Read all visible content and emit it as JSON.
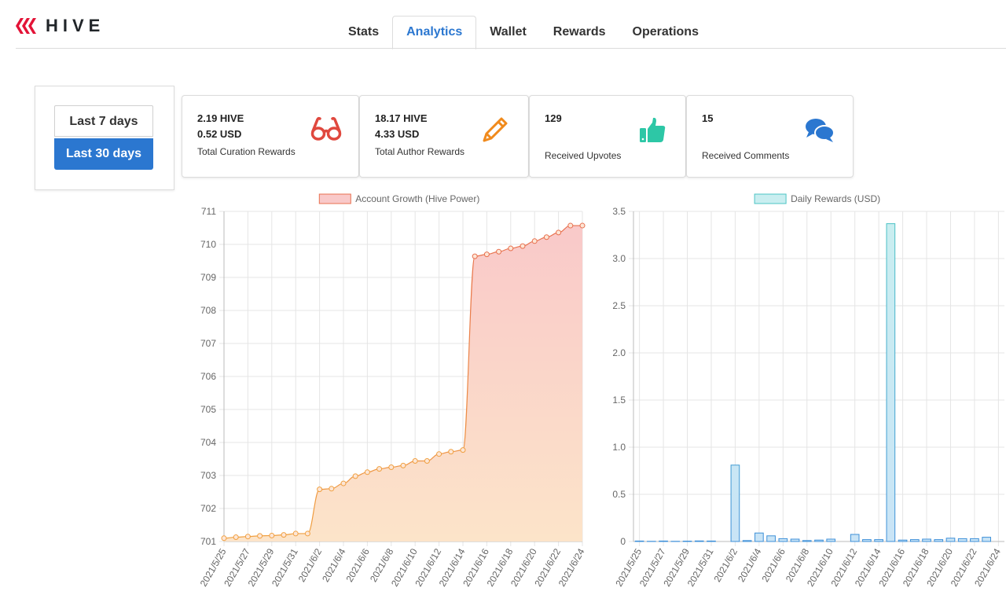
{
  "brand": {
    "logo_text": "HIVE"
  },
  "tabs": [
    "Stats",
    "Analytics",
    "Wallet",
    "Rewards",
    "Operations"
  ],
  "active_tab": "Analytics",
  "period": {
    "last7": "Last 7 days",
    "last30": "Last 30 days",
    "selected": "Last 30 days"
  },
  "cards": {
    "curation": {
      "line1": "2.19 HIVE",
      "line2": "0.52 USD",
      "label": "Total Curation Rewards",
      "icon": "glasses-icon",
      "color": "#e0483e"
    },
    "author": {
      "line1": "18.17 HIVE",
      "line2": "4.33 USD",
      "label": "Total Author Rewards",
      "icon": "pencil-icon",
      "color": "#f08a1c"
    },
    "upvotes": {
      "line1": "129",
      "label": "Received Upvotes",
      "icon": "thumbs-up-icon",
      "color": "#2dc7a6"
    },
    "comments": {
      "line1": "15",
      "label": "Received Comments",
      "icon": "comments-icon",
      "color": "#2b77d0"
    }
  },
  "chart_data": [
    {
      "type": "area",
      "legend": "Account Growth (Hive Power)",
      "legend_position": "top-center",
      "grid": true,
      "ylim": [
        701,
        711
      ],
      "yticks": [
        701,
        702,
        703,
        704,
        705,
        706,
        707,
        708,
        709,
        710,
        711
      ],
      "x": [
        "2021/5/25",
        "2021/5/26",
        "2021/5/27",
        "2021/5/28",
        "2021/5/29",
        "2021/5/30",
        "2021/5/31",
        "2021/6/1",
        "2021/6/2",
        "2021/6/3",
        "2021/6/4",
        "2021/6/5",
        "2021/6/6",
        "2021/6/7",
        "2021/6/8",
        "2021/6/9",
        "2021/6/10",
        "2021/6/11",
        "2021/6/12",
        "2021/6/13",
        "2021/6/14",
        "2021/6/15",
        "2021/6/16",
        "2021/6/17",
        "2021/6/18",
        "2021/6/19",
        "2021/6/20",
        "2021/6/21",
        "2021/6/22",
        "2021/6/23",
        "2021/6/24"
      ],
      "xtick_labels": [
        "2021/5/25",
        "2021/5/27",
        "2021/5/29",
        "2021/5/31",
        "2021/6/2",
        "2021/6/4",
        "2021/6/6",
        "2021/6/8",
        "2021/6/10",
        "2021/6/12",
        "2021/6/14",
        "2021/6/16",
        "2021/6/18",
        "2021/6/20",
        "2021/6/22",
        "2021/6/24"
      ],
      "values": [
        701.1,
        701.13,
        701.15,
        701.17,
        701.18,
        701.2,
        701.24,
        701.24,
        702.58,
        702.6,
        702.76,
        702.98,
        703.1,
        703.2,
        703.25,
        703.3,
        703.44,
        703.44,
        703.65,
        703.72,
        703.77,
        709.64,
        709.7,
        709.78,
        709.88,
        709.95,
        710.1,
        710.22,
        710.36,
        710.57,
        710.57
      ],
      "fill_top_color": "#f9c9c9",
      "fill_bottom_color": "#fce4c9",
      "line_top_color": "#e8704f",
      "line_bottom_color": "#f0a040"
    },
    {
      "type": "bar",
      "legend": "Daily Rewards (USD)",
      "legend_position": "top-center",
      "grid": true,
      "ylim": [
        0,
        3.5
      ],
      "yticks": [
        0,
        0.5,
        1.0,
        1.5,
        2.0,
        2.5,
        3.0,
        3.5
      ],
      "ytick_labels": [
        "0",
        "0.5",
        "1.0",
        "1.5",
        "2.0",
        "2.5",
        "3.0",
        "3.5"
      ],
      "x": [
        "2021/5/25",
        "2021/5/26",
        "2021/5/27",
        "2021/5/28",
        "2021/5/29",
        "2021/5/30",
        "2021/5/31",
        "2021/6/1",
        "2021/6/2",
        "2021/6/3",
        "2021/6/4",
        "2021/6/5",
        "2021/6/6",
        "2021/6/7",
        "2021/6/8",
        "2021/6/9",
        "2021/6/10",
        "2021/6/11",
        "2021/6/12",
        "2021/6/13",
        "2021/6/14",
        "2021/6/15",
        "2021/6/16",
        "2021/6/17",
        "2021/6/18",
        "2021/6/19",
        "2021/6/20",
        "2021/6/21",
        "2021/6/22",
        "2021/6/23",
        "2021/6/24"
      ],
      "xtick_labels": [
        "2021/5/25",
        "2021/5/27",
        "2021/5/29",
        "2021/5/31",
        "2021/6/2",
        "2021/6/4",
        "2021/6/6",
        "2021/6/8",
        "2021/6/10",
        "2021/6/12",
        "2021/6/14",
        "2021/6/16",
        "2021/6/18",
        "2021/6/20",
        "2021/6/22",
        "2021/6/24"
      ],
      "values": [
        0.005,
        0.002,
        0.005,
        0.002,
        0.004,
        0.006,
        0.005,
        0.0,
        0.81,
        0.01,
        0.09,
        0.06,
        0.03,
        0.025,
        0.01,
        0.015,
        0.025,
        0.0,
        0.075,
        0.02,
        0.02,
        3.37,
        0.015,
        0.02,
        0.025,
        0.02,
        0.035,
        0.03,
        0.03,
        0.045,
        0.0
      ],
      "bar_fill_top": "#c9eef0",
      "bar_fill_bottom": "#c9e4f6",
      "bar_stroke_top": "#4cc4c4",
      "bar_stroke_bottom": "#3d8fd8"
    }
  ]
}
